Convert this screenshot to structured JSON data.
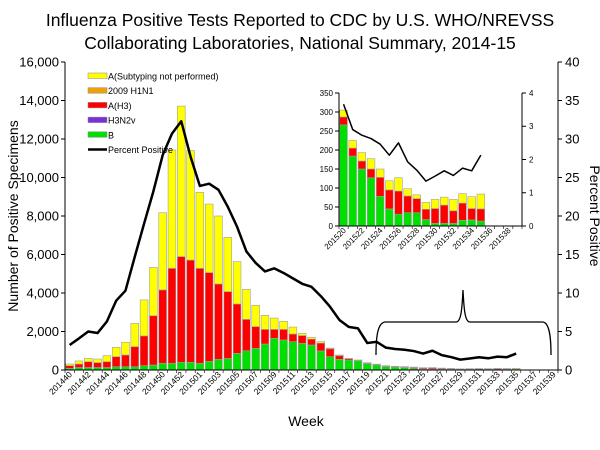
{
  "chart_data": {
    "type": "bar",
    "stacked": true,
    "title": [
      "Influenza Positive Tests Reported to CDC by U.S. WHO/NREVSS",
      "Collaborating Laboratories, National Summary, 2014-15"
    ],
    "xlabel": "Week",
    "ylabel": "Number of Positive Specimens",
    "y2label": "Percent Positive",
    "ylim": [
      0,
      16000
    ],
    "y2lim": [
      0,
      40
    ],
    "yticks": [
      "0",
      "2,000",
      "4,000",
      "6,000",
      "8,000",
      "10,000",
      "12,000",
      "14,000",
      "16,000"
    ],
    "y2ticks": [
      "0",
      "5",
      "10",
      "15",
      "20",
      "25",
      "30",
      "35",
      "40"
    ],
    "categories": [
      "201440",
      "201441",
      "201442",
      "201443",
      "201444",
      "201445",
      "201446",
      "201447",
      "201448",
      "201449",
      "201450",
      "201451",
      "201452",
      "201453",
      "201501",
      "201502",
      "201503",
      "201504",
      "201505",
      "201506",
      "201507",
      "201508",
      "201509",
      "201510",
      "201511",
      "201512",
      "201513",
      "201514",
      "201515",
      "201516",
      "201517",
      "201518",
      "201519",
      "201520",
      "201521",
      "201522",
      "201523",
      "201524",
      "201525",
      "201526",
      "201527",
      "201528",
      "201529",
      "201530",
      "201531",
      "201532",
      "201533",
      "201534",
      "201535",
      "201536",
      "201537",
      "201538",
      "201539"
    ],
    "xtick_labels": [
      "201440",
      "201442",
      "201444",
      "201446",
      "201448",
      "201450",
      "201452",
      "201501",
      "201503",
      "201505",
      "201507",
      "201509",
      "201511",
      "201513",
      "201515",
      "201517",
      "201519",
      "201521",
      "201523",
      "201525",
      "201527",
      "201529",
      "201531",
      "201533",
      "201535",
      "201537",
      "201539"
    ],
    "legend": "top-left",
    "series": [
      {
        "name": "B",
        "color": "#00e000",
        "values": [
          85,
          130,
          130,
          130,
          130,
          170,
          170,
          170,
          225,
          260,
          350,
          350,
          400,
          400,
          350,
          450,
          555,
          600,
          865,
          1000,
          1125,
          1350,
          1645,
          1560,
          1470,
          1385,
          1300,
          990,
          690,
          555,
          520,
          480,
          330,
          266,
          184,
          150,
          127,
          78,
          45,
          31,
          35,
          35,
          17,
          7,
          7,
          7,
          15,
          16,
          13,
          null,
          null,
          null,
          null
        ]
      },
      {
        "name": "H3N2v",
        "color": "#7b2fd8",
        "values": [
          0,
          0,
          0,
          0,
          0,
          0,
          0,
          0,
          0,
          0,
          0,
          0,
          0,
          0,
          0,
          0,
          0,
          0,
          0,
          0,
          0,
          0,
          0,
          0,
          0,
          0,
          0,
          0,
          0,
          0,
          0,
          0,
          0,
          0,
          0,
          0,
          0,
          0,
          0,
          0,
          0,
          0,
          0,
          0,
          0,
          0,
          0,
          0,
          0,
          null,
          null,
          null,
          null
        ]
      },
      {
        "name": "A(H3)",
        "color": "#ff0000",
        "values": [
          140,
          180,
          300,
          250,
          300,
          520,
          610,
          1040,
          1545,
          2560,
          3810,
          4930,
          5490,
          5310,
          4930,
          4610,
          3915,
          3470,
          2565,
          1630,
          1125,
          760,
          465,
          550,
          400,
          405,
          300,
          410,
          410,
          185,
          70,
          30,
          30,
          21,
          21,
          21,
          23,
          50,
          50,
          61,
          44,
          37,
          27,
          39,
          48,
          33,
          45,
          30,
          32,
          null,
          null,
          null,
          null
        ]
      },
      {
        "name": "2009 H1N1",
        "color": "#f0a000",
        "values": [
          0,
          0,
          0,
          0,
          0,
          0,
          0,
          0,
          0,
          0,
          0,
          0,
          0,
          0,
          0,
          0,
          0,
          0,
          0,
          0,
          0,
          0,
          0,
          0,
          0,
          0,
          0,
          0,
          0,
          0,
          0,
          0,
          0,
          0,
          0,
          0,
          0,
          0,
          0,
          0,
          0,
          0,
          0,
          0,
          0,
          0,
          0,
          0,
          0,
          null,
          null,
          null,
          null
        ]
      },
      {
        "name": "A(Subtyping not performed)",
        "color": "#ffff00",
        "values": [
          87,
          160,
          170,
          190,
          315,
          490,
          660,
          1210,
          1870,
          2510,
          4010,
          6150,
          7820,
          5690,
          3950,
          3560,
          3530,
          2820,
          2200,
          1560,
          1110,
          730,
          590,
          420,
          360,
          110,
          100,
          70,
          40,
          40,
          10,
          10,
          20,
          18,
          20,
          22,
          27,
          22,
          24,
          35,
          19,
          10,
          18,
          24,
          21,
          30,
          25,
          31,
          39,
          null,
          null,
          null,
          null
        ]
      }
    ],
    "line": {
      "name": "Percent Positive",
      "color": "#000000",
      "axis": "right",
      "values": [
        3.25,
        4.1,
        5.0,
        4.8,
        6.3,
        9.0,
        10.3,
        14.7,
        19.0,
        23.2,
        27.9,
        30.7,
        32.3,
        27.7,
        23.9,
        24.2,
        23.4,
        21.2,
        18.6,
        15.4,
        13.9,
        12.8,
        13.2,
        12.6,
        11.9,
        11.2,
        10.8,
        9.6,
        8.2,
        6.5,
        5.6,
        5.4,
        3.5,
        3.66,
        2.9,
        2.73,
        2.63,
        2.46,
        2.13,
        2.5,
        1.93,
        1.68,
        1.35,
        1.5,
        1.66,
        1.52,
        1.74,
        1.66,
        2.13,
        null,
        null,
        null,
        null
      ]
    },
    "legend_order": [
      "A(Subtyping not performed)",
      "2009 H1N1",
      "A(H3)",
      "H3N2v",
      "B",
      "Percent Positive"
    ],
    "inset": {
      "categories_from": "201520",
      "categories_to": "201539",
      "ylim": [
        0,
        350
      ],
      "y2lim": [
        0,
        4
      ],
      "yticks": [
        "0",
        "50",
        "100",
        "150",
        "200",
        "250",
        "300",
        "350"
      ],
      "y2ticks": [
        "0",
        "1",
        "2",
        "3",
        "4"
      ],
      "xtick_labels": [
        "201520",
        "201522",
        "201524",
        "201526",
        "201528",
        "201530",
        "201532",
        "201534",
        "201536",
        "201538"
      ]
    }
  }
}
